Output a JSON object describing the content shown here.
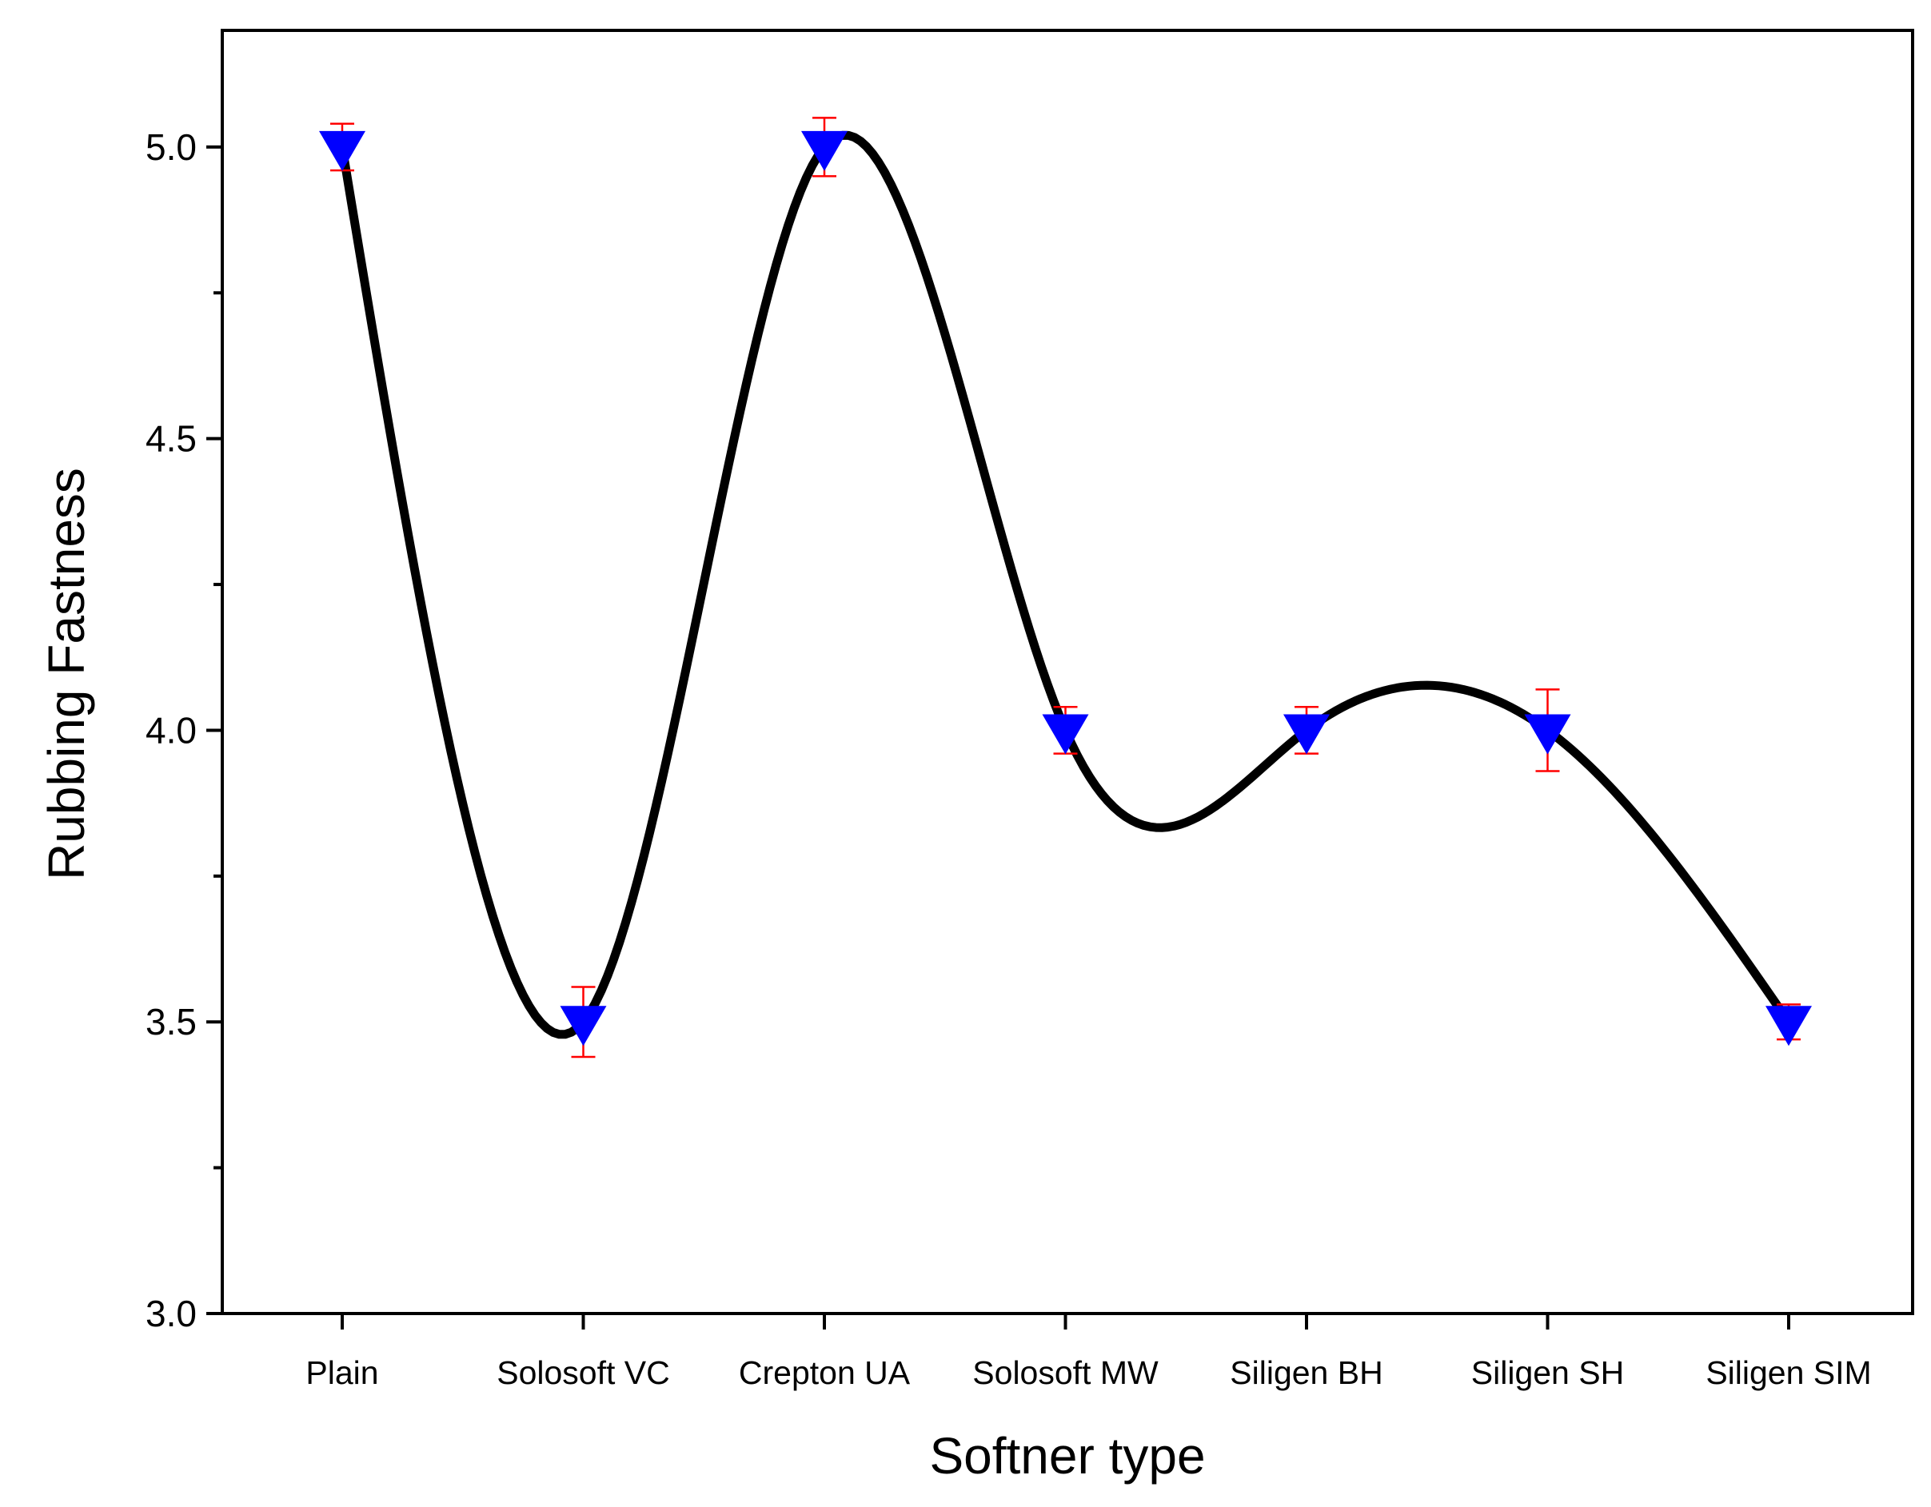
{
  "chart_data": {
    "type": "line",
    "title": "",
    "xlabel": "Softner type",
    "ylabel": "Rubbing Fastness",
    "categories": [
      "Plain",
      "Solosoft VC",
      "Crepton UA",
      "Solosoft MW",
      "Siligen BH",
      "Siligen SH",
      "Siligen SIM"
    ],
    "series": [
      {
        "values": [
          5.0,
          3.5,
          5.0,
          4.0,
          4.0,
          4.0,
          3.5
        ],
        "errors": [
          0.04,
          0.06,
          0.05,
          0.04,
          0.04,
          0.07,
          0.03
        ],
        "line_color": "#000000",
        "marker": "down-triangle",
        "marker_color": "#0000ff",
        "error_color": "#ff0000",
        "smoothed": true
      }
    ],
    "ylim": [
      3.0,
      5.2
    ],
    "yticks": [
      "3.0",
      "3.5",
      "4.0",
      "4.5",
      "5.0"
    ],
    "grid": false,
    "legend": "none"
  }
}
